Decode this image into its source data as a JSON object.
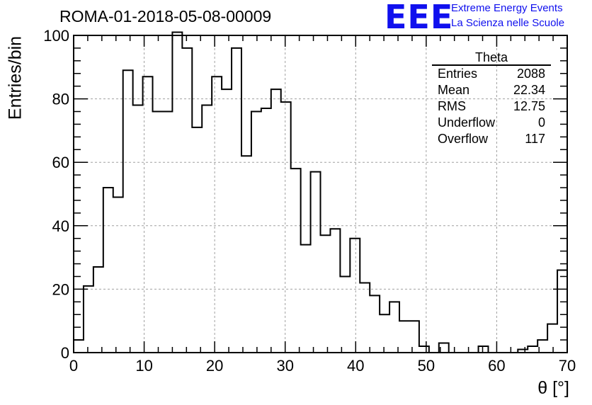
{
  "title": "ROMA-01-2018-05-08-00009",
  "logo": {
    "mark": "EEE",
    "line1": "Extreme Energy Events",
    "line2": "La Scienza nelle Scuole",
    "color": "#1010ee"
  },
  "stats": {
    "title": "Theta",
    "rows": [
      {
        "label": "Entries",
        "value": "2088"
      },
      {
        "label": "Mean",
        "value": "22.34"
      },
      {
        "label": "RMS",
        "value": "12.75"
      },
      {
        "label": "Underflow",
        "value": "0"
      },
      {
        "label": "Overflow",
        "value": "117"
      }
    ]
  },
  "chart_data": {
    "type": "bar",
    "style": "step-histogram",
    "title": "ROMA-01-2018-05-08-00009",
    "xlabel": "θ [°]",
    "ylabel": "Entries/bin",
    "xlim": [
      0,
      70
    ],
    "ylim": [
      0,
      100
    ],
    "xticks": [
      0,
      10,
      20,
      30,
      40,
      50,
      60,
      70
    ],
    "yticks": [
      0,
      20,
      40,
      60,
      80,
      100
    ],
    "grid": true,
    "bin_width": 1.4,
    "bin_edges_start": 0,
    "values": [
      4,
      21,
      27,
      52,
      49,
      89,
      78,
      87,
      76,
      76,
      101,
      96,
      71,
      78,
      87,
      83,
      96,
      62,
      76,
      77,
      83,
      79,
      58,
      34,
      57,
      37,
      39,
      24,
      36,
      22,
      18,
      12,
      16,
      10,
      10,
      2,
      0,
      3,
      0,
      0,
      0,
      2,
      0,
      0,
      0,
      1,
      2,
      4,
      9,
      26
    ],
    "line_color": "#000000"
  }
}
